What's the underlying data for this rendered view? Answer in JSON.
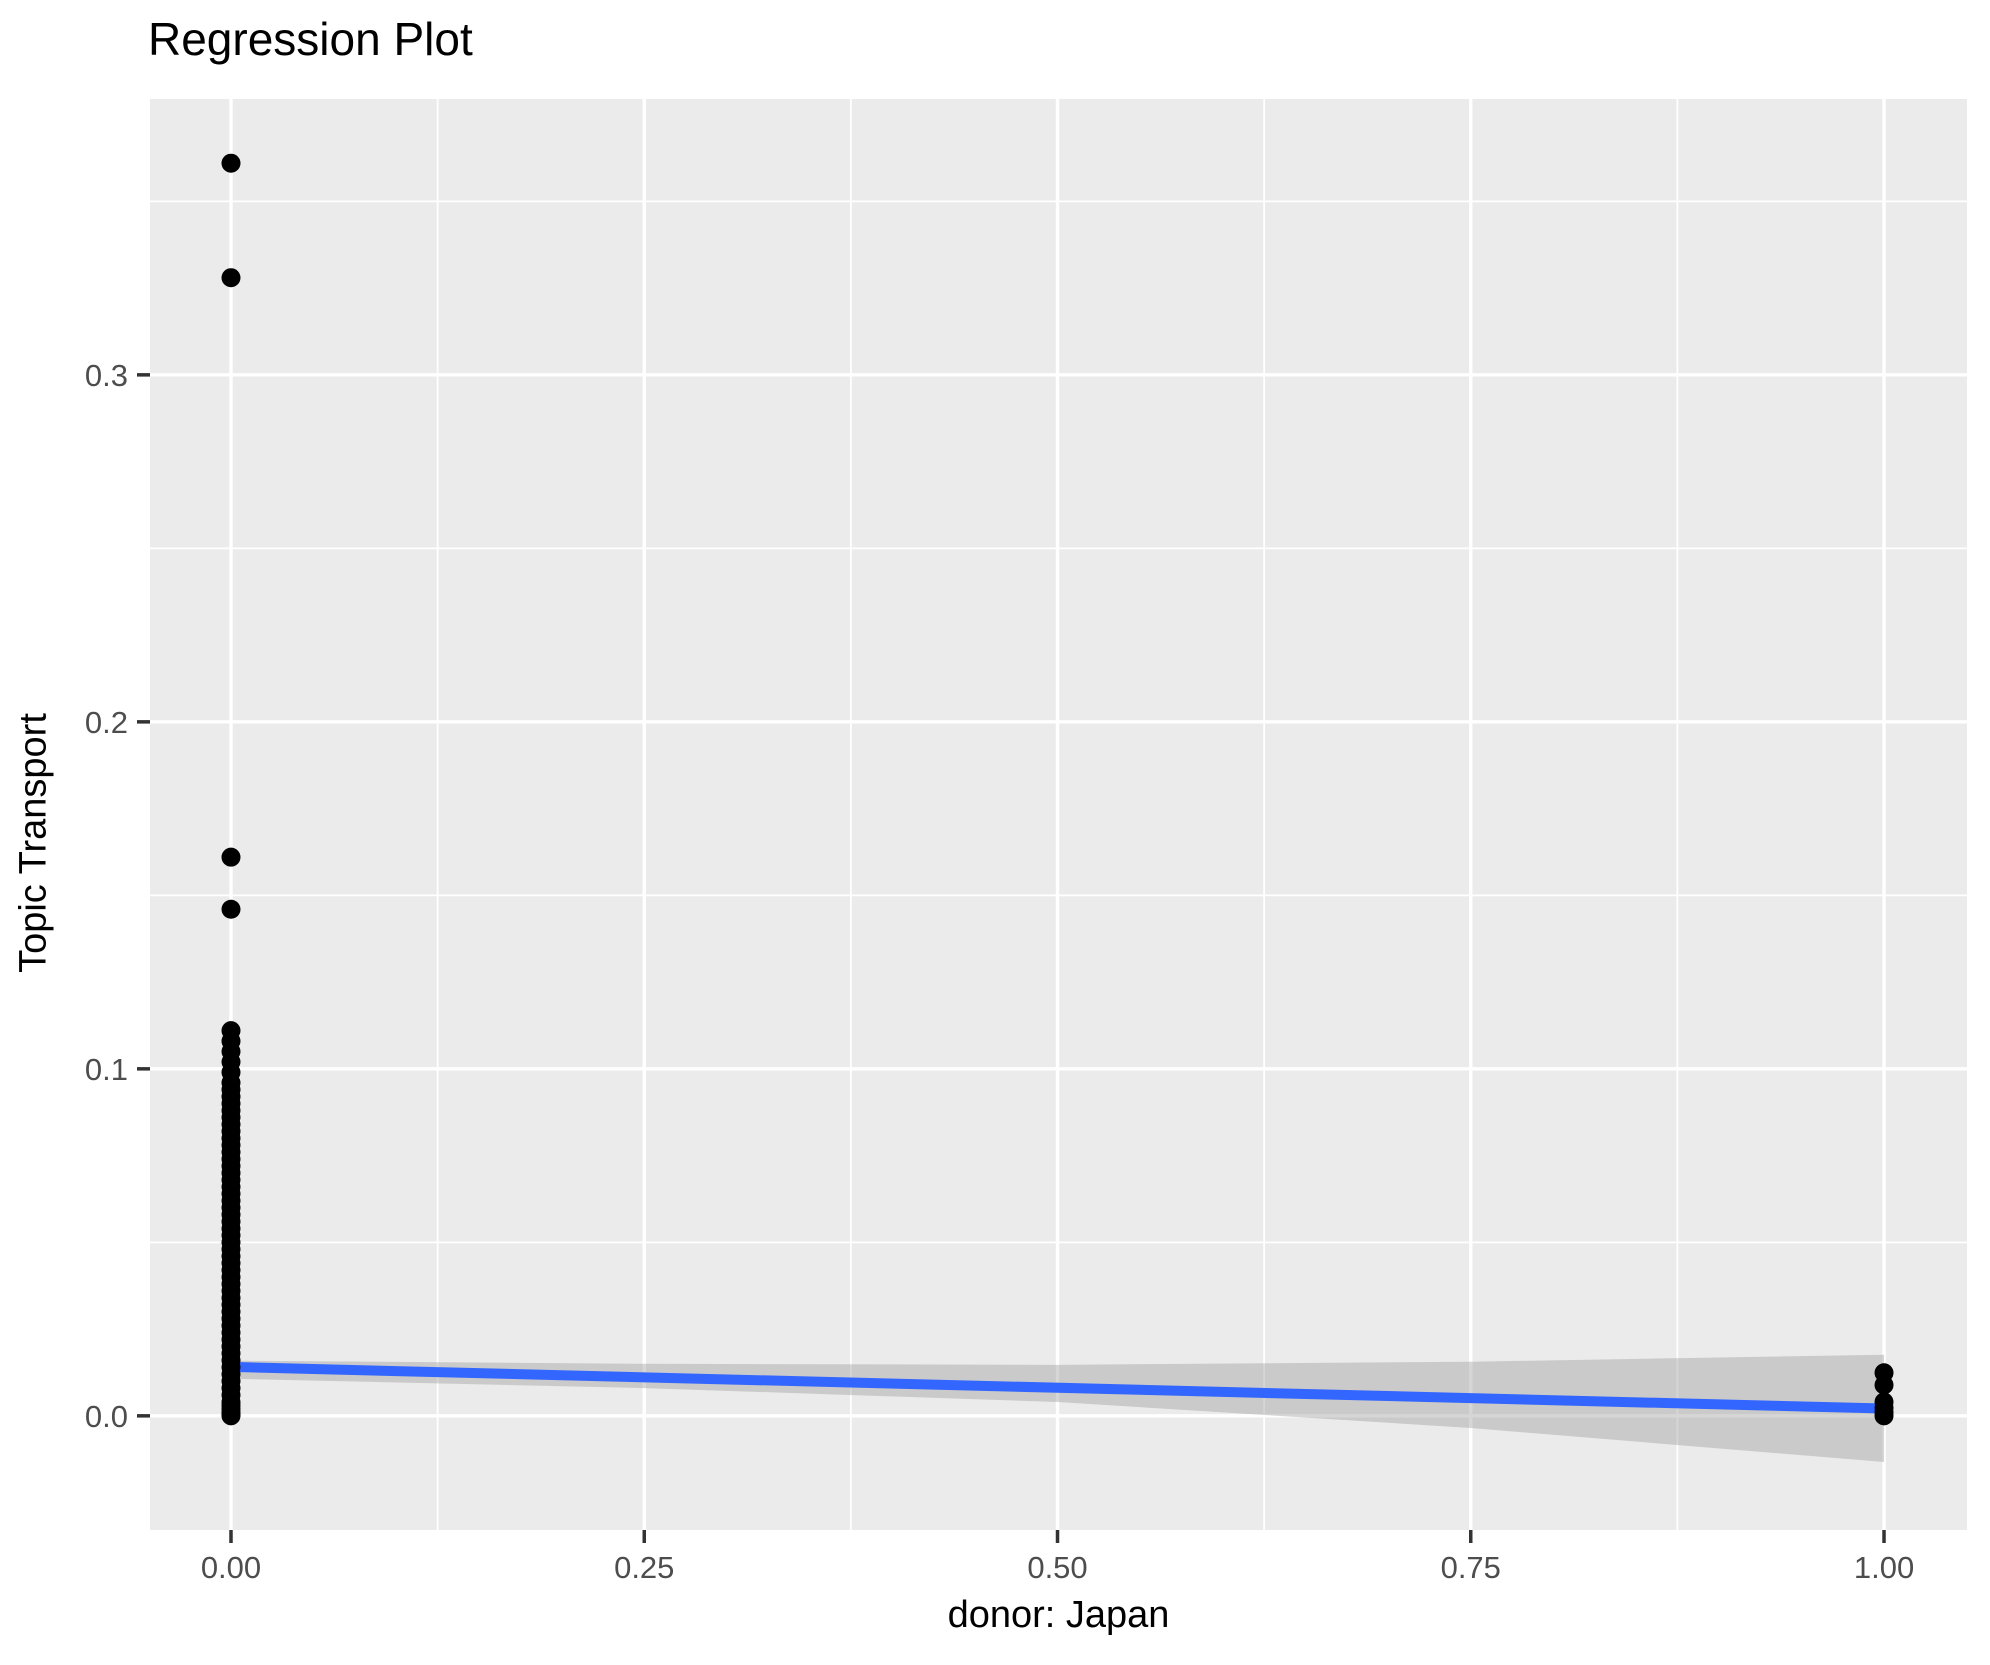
{
  "title": "Regression Plot",
  "axes": {
    "x_title": "donor: Japan",
    "y_title": "Topic Transport"
  },
  "colors": {
    "panel_background": "#EBEBEB",
    "grid": "#FFFFFF",
    "tick_label": "#4D4D4D",
    "tick_mark": "#333333",
    "point": "#000000",
    "regression_line": "#3366FF",
    "confidence_band": "#999999",
    "confidence_band_opacity": 0.4,
    "title_text": "#000000"
  },
  "chart_data": {
    "type": "scatter",
    "title": "Regression Plot",
    "xlabel": "donor: Japan",
    "ylabel": "Topic Transport",
    "xlim": [
      -0.049,
      1.0502
    ],
    "ylim": [
      -0.0329,
      0.3795
    ],
    "grid": true,
    "legend": "none",
    "x_ticks": {
      "values": [
        0,
        0.25,
        0.5,
        0.75,
        1
      ],
      "labels": [
        "0.00",
        "0.25",
        "0.50",
        "0.75",
        "1.00"
      ],
      "minor": [
        0.125,
        0.375,
        0.625,
        0.875
      ]
    },
    "y_ticks": {
      "values": [
        0,
        0.1,
        0.2,
        0.3
      ],
      "labels": [
        "0.0",
        "0.1",
        "0.2",
        "0.3"
      ],
      "minor": [
        0.05,
        0.15,
        0.25,
        0.35
      ]
    },
    "points": [
      {
        "x": 0,
        "ys": [
          0.361,
          0.328,
          0.161,
          0.146,
          0.111,
          0.108,
          0.105,
          0.102,
          0.099,
          0.096,
          0.094,
          0.092,
          0.09,
          0.088,
          0.086,
          0.084,
          0.082,
          0.08,
          0.078,
          0.076,
          0.074,
          0.072,
          0.07,
          0.068,
          0.066,
          0.064,
          0.062,
          0.06,
          0.058,
          0.056,
          0.054,
          0.052,
          0.05,
          0.048,
          0.046,
          0.044,
          0.042,
          0.04,
          0.038,
          0.036,
          0.034,
          0.032,
          0.03,
          0.028,
          0.026,
          0.024,
          0.022,
          0.02,
          0.018,
          0.016,
          0.014,
          0.012,
          0.01,
          0.008,
          0.006,
          0.004,
          0.003,
          0.002,
          0.001,
          0.0005,
          0.0
        ]
      },
      {
        "x": 1,
        "ys": [
          0.0124,
          0.0089,
          0.004,
          0.0023,
          0.001,
          0.0
        ]
      }
    ],
    "regression_line": {
      "x": [
        0,
        1
      ],
      "y": [
        0.0141,
        0.0021
      ]
    },
    "ci_band": {
      "x": [
        0,
        0.25,
        0.5,
        0.75,
        1
      ],
      "upper": [
        0.0159,
        0.015,
        0.0147,
        0.0156,
        0.0176
      ],
      "lower": [
        0.0107,
        0.008,
        0.004,
        -0.0035,
        -0.0133
      ]
    }
  }
}
